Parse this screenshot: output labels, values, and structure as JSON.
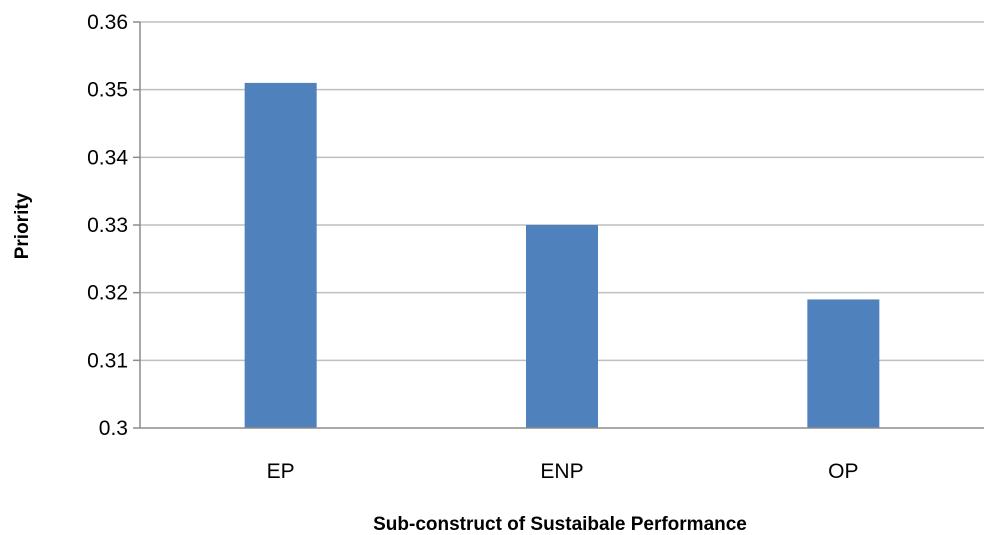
{
  "chart_data": {
    "type": "bar",
    "title": "",
    "xlabel": "Sub-construct of Sustaibale Performance",
    "ylabel": "Priority",
    "categories": [
      "EP",
      "ENP",
      "OP"
    ],
    "values": [
      0.351,
      0.33,
      0.319
    ],
    "ylim": [
      0.3,
      0.36
    ],
    "yticks": [
      0.3,
      0.31,
      0.32,
      0.33,
      0.34,
      0.35,
      0.36
    ],
    "ytick_labels": [
      "0.3",
      "0.31",
      "0.32",
      "0.33",
      "0.34",
      "0.35",
      "0.36"
    ],
    "grid": true,
    "legend": "none",
    "bar_color": "#4f81bd",
    "grid_color": "#bfbfbf",
    "axis_color": "#8c8c8c"
  }
}
